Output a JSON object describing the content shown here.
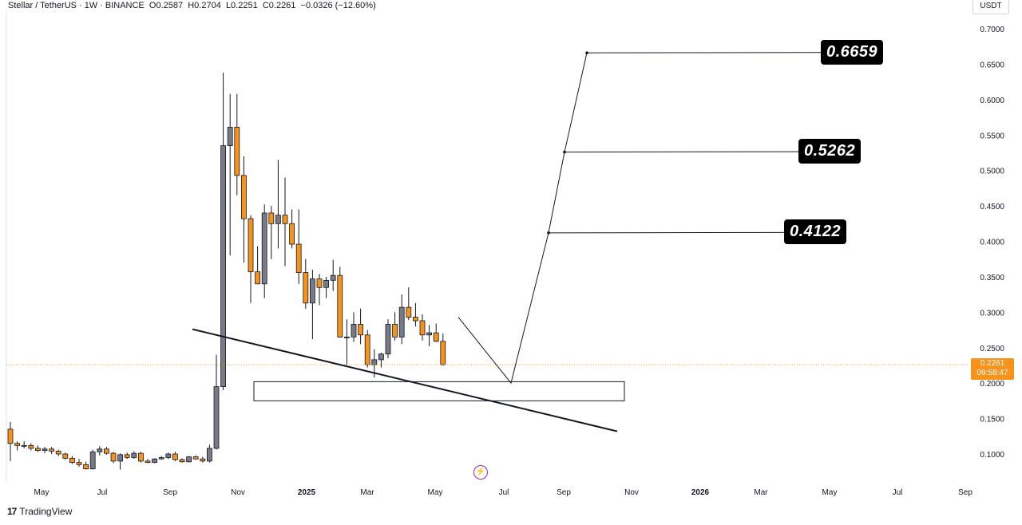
{
  "header": {
    "symbol": "Stellar / TetherUS",
    "interval": "1W",
    "exchange": "BINANCE",
    "open": "O0.2587",
    "high": "H0.2704",
    "low": "L0.2251",
    "close": "C0.2261",
    "change": "−0.0326 (−12.60%)"
  },
  "currency": "USDT",
  "last_price": {
    "value": "0.2261",
    "countdown": "09:58:47",
    "color": "#f7931a"
  },
  "targets": [
    "0.6659",
    "0.5262",
    "0.4122"
  ],
  "watermark": "TradingView",
  "colors": {
    "up": "#787b86",
    "down": "#f7931a",
    "line": "#131722"
  },
  "chart_data": {
    "type": "candlestick",
    "y_ticks": [
      "0.7000",
      "0.6500",
      "0.6000",
      "0.5500",
      "0.5000",
      "0.4500",
      "0.4000",
      "0.3500",
      "0.3000",
      "0.2500",
      "0.2000",
      "0.1500",
      "0.1000"
    ],
    "x_ticks": [
      "May",
      "Jul",
      "Sep",
      "Nov",
      "2025",
      "Mar",
      "May",
      "Jul",
      "Sep",
      "Nov",
      "2026",
      "Mar",
      "May",
      "Jul",
      "Sep"
    ],
    "ylim": [
      0.06,
      0.72
    ],
    "candles": [
      [
        0.135,
        0.145,
        0.09,
        0.115
      ],
      [
        0.115,
        0.118,
        0.105,
        0.112
      ],
      [
        0.112,
        0.118,
        0.108,
        0.112
      ],
      [
        0.112,
        0.115,
        0.105,
        0.108
      ],
      [
        0.108,
        0.112,
        0.103,
        0.105
      ],
      [
        0.105,
        0.11,
        0.101,
        0.107
      ],
      [
        0.107,
        0.11,
        0.1,
        0.104
      ],
      [
        0.104,
        0.106,
        0.097,
        0.1
      ],
      [
        0.1,
        0.102,
        0.092,
        0.094
      ],
      [
        0.094,
        0.097,
        0.086,
        0.088
      ],
      [
        0.088,
        0.093,
        0.082,
        0.085
      ],
      [
        0.085,
        0.089,
        0.078,
        0.079
      ],
      [
        0.079,
        0.106,
        0.078,
        0.103
      ],
      [
        0.103,
        0.111,
        0.098,
        0.107
      ],
      [
        0.107,
        0.11,
        0.099,
        0.101
      ],
      [
        0.101,
        0.103,
        0.087,
        0.09
      ],
      [
        0.09,
        0.101,
        0.078,
        0.099
      ],
      [
        0.099,
        0.102,
        0.093,
        0.095
      ],
      [
        0.095,
        0.104,
        0.093,
        0.101
      ],
      [
        0.101,
        0.103,
        0.088,
        0.09
      ],
      [
        0.09,
        0.093,
        0.087,
        0.088
      ],
      [
        0.088,
        0.094,
        0.087,
        0.093
      ],
      [
        0.093,
        0.097,
        0.092,
        0.095
      ],
      [
        0.095,
        0.102,
        0.093,
        0.1
      ],
      [
        0.1,
        0.103,
        0.09,
        0.092
      ],
      [
        0.092,
        0.094,
        0.088,
        0.089
      ],
      [
        0.089,
        0.097,
        0.088,
        0.096
      ],
      [
        0.096,
        0.098,
        0.092,
        0.093
      ],
      [
        0.093,
        0.096,
        0.088,
        0.09
      ],
      [
        0.09,
        0.113,
        0.088,
        0.108
      ],
      [
        0.108,
        0.24,
        0.106,
        0.195
      ],
      [
        0.195,
        0.638,
        0.19,
        0.535
      ],
      [
        0.535,
        0.608,
        0.38,
        0.561
      ],
      [
        0.561,
        0.608,
        0.465,
        0.493
      ],
      [
        0.493,
        0.52,
        0.37,
        0.432
      ],
      [
        0.432,
        0.437,
        0.313,
        0.357
      ],
      [
        0.357,
        0.393,
        0.34,
        0.34
      ],
      [
        0.34,
        0.452,
        0.32,
        0.44
      ],
      [
        0.44,
        0.45,
        0.375,
        0.425
      ],
      [
        0.425,
        0.515,
        0.39,
        0.437
      ],
      [
        0.437,
        0.49,
        0.365,
        0.425
      ],
      [
        0.425,
        0.445,
        0.39,
        0.396
      ],
      [
        0.396,
        0.445,
        0.34,
        0.356
      ],
      [
        0.356,
        0.375,
        0.305,
        0.313
      ],
      [
        0.313,
        0.36,
        0.262,
        0.347
      ],
      [
        0.347,
        0.354,
        0.31,
        0.335
      ],
      [
        0.335,
        0.35,
        0.32,
        0.345
      ],
      [
        0.345,
        0.374,
        0.33,
        0.352
      ],
      [
        0.352,
        0.364,
        0.264,
        0.265
      ],
      [
        0.265,
        0.29,
        0.225,
        0.265
      ],
      [
        0.265,
        0.3,
        0.258,
        0.283
      ],
      [
        0.283,
        0.305,
        0.255,
        0.268
      ],
      [
        0.268,
        0.275,
        0.222,
        0.226
      ],
      [
        0.226,
        0.248,
        0.208,
        0.233
      ],
      [
        0.233,
        0.243,
        0.222,
        0.241
      ],
      [
        0.241,
        0.29,
        0.235,
        0.283
      ],
      [
        0.283,
        0.3,
        0.26,
        0.265
      ],
      [
        0.265,
        0.325,
        0.255,
        0.307
      ],
      [
        0.307,
        0.335,
        0.289,
        0.293
      ],
      [
        0.293,
        0.313,
        0.28,
        0.288
      ],
      [
        0.288,
        0.297,
        0.26,
        0.268
      ],
      [
        0.268,
        0.282,
        0.252,
        0.271
      ],
      [
        0.271,
        0.284,
        0.258,
        0.259
      ],
      [
        0.259,
        0.27,
        0.225,
        0.226
      ]
    ],
    "support_zone": {
      "from": "2024-11",
      "to": "2025-09",
      "low": 0.175,
      "high": 0.202
    },
    "trendline": [
      [
        0.276,
        "start"
      ],
      [
        0.132,
        "end"
      ]
    ],
    "projection": [
      0.2,
      0.412,
      0.526,
      0.666
    ]
  }
}
